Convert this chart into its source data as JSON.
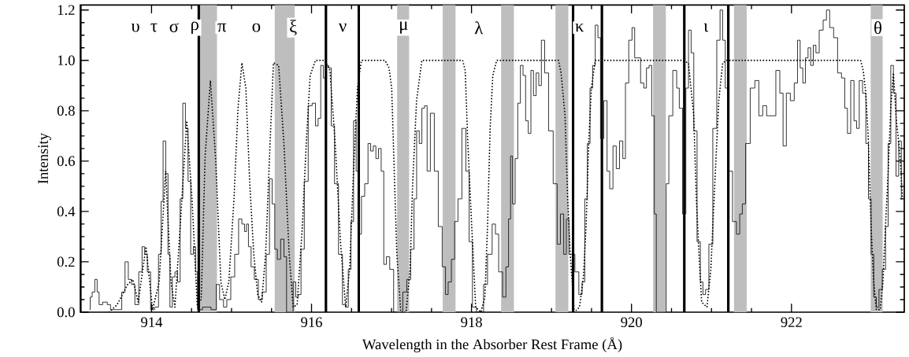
{
  "chart_data": {
    "type": "step",
    "xlabel": "Wavelength in the Absorber Rest Frame (Å)",
    "ylabel": "Intensity",
    "xlim": [
      913.11,
      923.41
    ],
    "ylim": [
      0,
      1.22
    ],
    "xticks": [
      914,
      916,
      918,
      920,
      922
    ],
    "yticks": [
      {
        "value": 0,
        "label": "0.0"
      },
      {
        "value": 0.2,
        "label": "0.2"
      },
      {
        "value": 0.4,
        "label": "0.4"
      },
      {
        "value": 0.6,
        "label": "0.6"
      },
      {
        "value": 0.8,
        "label": "0.8"
      },
      {
        "value": 1.0,
        "label": "1.0"
      },
      {
        "value": 1.2,
        "label": "1.2"
      }
    ],
    "series": [
      {
        "color": "#000000",
        "line_style": "solid",
        "x": [
          913.225,
          913.241,
          913.274,
          913.307,
          913.333,
          913.356,
          913.422,
          913.471,
          913.504,
          913.603,
          913.652,
          913.685,
          913.734,
          913.767,
          913.816,
          913.865,
          913.898,
          913.931,
          913.964,
          914.013,
          914.062,
          914.112,
          914.128,
          914.161,
          914.194,
          914.217,
          914.243,
          914.276,
          914.309,
          914.341,
          914.374,
          914.407,
          914.44,
          914.473,
          914.506,
          914.539,
          914.562,
          914.588,
          914.686,
          914.801,
          914.818,
          914.884,
          914.916,
          914.966,
          915.015,
          915.064,
          915.113,
          915.146,
          915.179,
          915.195,
          915.228,
          915.261,
          915.31,
          915.36,
          915.409,
          915.458,
          915.491,
          915.524,
          915.557,
          915.589,
          915.639,
          915.672,
          915.704,
          915.754,
          915.786,
          915.82,
          915.852,
          915.885,
          915.934,
          915.983,
          916.033,
          916.066,
          916.099,
          916.131,
          916.164,
          916.197,
          916.23,
          916.263,
          916.312,
          916.362,
          916.411,
          916.443,
          916.476,
          916.509,
          916.542,
          916.574,
          916.608,
          916.64,
          916.69,
          916.722,
          916.756,
          916.788,
          916.821,
          916.854,
          916.887,
          916.919,
          916.953,
          917.002,
          917.051,
          917.116,
          917.166,
          917.215,
          917.264,
          917.298,
          917.33,
          917.363,
          917.396,
          917.429,
          917.461,
          917.51,
          917.56,
          917.609,
          917.658,
          917.692,
          917.724,
          917.773,
          917.806,
          917.855,
          917.904,
          917.954,
          917.987,
          918.036,
          918.086,
          918.135,
          918.167,
          918.233,
          918.283,
          918.315,
          918.364,
          918.414,
          918.446,
          918.48,
          918.496,
          918.529,
          918.562,
          918.594,
          918.628,
          918.66,
          918.693,
          918.726,
          918.759,
          918.791,
          918.825,
          918.857,
          918.89,
          918.939,
          918.988,
          919.054,
          919.087,
          919.136,
          919.169,
          919.202,
          919.234,
          919.268,
          919.317,
          919.366,
          919.399,
          919.432,
          919.465,
          919.498,
          919.53,
          919.564,
          919.596,
          919.629,
          919.678,
          919.711,
          919.744,
          919.793,
          919.826,
          919.875,
          919.908,
          919.941,
          919.99,
          920.023,
          920.056,
          920.089,
          920.138,
          920.17,
          920.204,
          920.236,
          920.269,
          920.302,
          920.318,
          920.417,
          920.45,
          920.483,
          920.549,
          920.581,
          920.614,
          920.663,
          920.696,
          920.729,
          920.762,
          920.795,
          920.844,
          920.877,
          920.909,
          920.943,
          920.992,
          921.041,
          921.091,
          921.123,
          921.156,
          921.189,
          921.238,
          921.287,
          921.337,
          921.369,
          921.402,
          921.451,
          921.517,
          921.567,
          921.616,
          921.665,
          921.714,
          921.78,
          921.829,
          921.879,
          921.911,
          921.961,
          922.01,
          922.059,
          922.092,
          922.125,
          922.158,
          922.19,
          922.224,
          922.256,
          922.289,
          922.322,
          922.371,
          922.421,
          922.453,
          922.502,
          922.552,
          922.601,
          922.65,
          922.683,
          922.716,
          922.765,
          922.798,
          922.83,
          922.864,
          922.913,
          922.946,
          922.978,
          923.012,
          923.044,
          923.077,
          923.11,
          923.16,
          923.192,
          923.225,
          923.258,
          923.291,
          923.323,
          923.357,
          923.389
        ],
        "values": [
          0.01,
          0.06,
          0.08,
          0.13,
          0.08,
          0.03,
          0.04,
          0.03,
          0.01,
          0.01,
          0.08,
          0.2,
          0.13,
          0.11,
          0.03,
          0.16,
          0.26,
          0.23,
          0.16,
          0.01,
          0.02,
          0.23,
          0.44,
          0.68,
          0.55,
          0.23,
          0.02,
          0.14,
          0.16,
          0.12,
          0.45,
          0.83,
          0.73,
          0.52,
          0.23,
          0.26,
          0.16,
          0.01,
          0.02,
          0.01,
          0.11,
          0.05,
          0.02,
          0.05,
          0.14,
          0.23,
          0.37,
          0.35,
          0.32,
          0.35,
          0.26,
          0.18,
          0.13,
          0.05,
          0.08,
          0.23,
          0.53,
          0.43,
          0.25,
          0.21,
          0.29,
          0.22,
          0.0,
          0.0,
          0.12,
          0.06,
          0.07,
          0.25,
          0.52,
          0.82,
          0.83,
          0.74,
          0.77,
          0.98,
          0.93,
          0.98,
          0.97,
          0.74,
          0.51,
          0.23,
          0.03,
          0.02,
          0.17,
          0.36,
          0.76,
          0.56,
          0.31,
          0.46,
          0.51,
          0.67,
          0.64,
          0.66,
          0.61,
          0.65,
          0.56,
          0.19,
          0.22,
          0.17,
          0.0,
          0.0,
          0.08,
          0.13,
          0.25,
          0.45,
          0.72,
          0.67,
          0.81,
          0.82,
          0.56,
          0.79,
          0.56,
          0.34,
          0.18,
          0.07,
          0.12,
          0.21,
          0.36,
          0.45,
          0.73,
          0.56,
          0.28,
          0.02,
          0.0,
          0.0,
          0.11,
          0.23,
          0.35,
          0.31,
          0.16,
          0.06,
          0.18,
          0.37,
          0.62,
          0.43,
          0.61,
          0.83,
          0.98,
          0.94,
          0.76,
          0.71,
          0.96,
          0.86,
          0.95,
          0.9,
          1.08,
          0.95,
          0.72,
          0.51,
          0.27,
          0.39,
          0.23,
          0.37,
          0.23,
          0.23,
          0.16,
          0.07,
          0.12,
          0.45,
          0.67,
          0.89,
          0.98,
          1.14,
          1.09,
          0.69,
          0.84,
          0.56,
          0.49,
          0.66,
          0.57,
          0.68,
          0.61,
          0.91,
          1.08,
          1.13,
          1.01,
          1.01,
          0.91,
          0.89,
          0.97,
          0.98,
          0.78,
          0.39,
          0.0,
          0.0,
          0.51,
          0.78,
          0.96,
          0.89,
          0.81,
          0.39,
          0.89,
          1.12,
          1.03,
          0.72,
          0.28,
          0.12,
          0.07,
          0.09,
          0.27,
          0.73,
          1.08,
          1.2,
          1.08,
          0.89,
          0.56,
          0.36,
          0.31,
          0.39,
          0.43,
          0.67,
          0.89,
          0.92,
          0.78,
          0.82,
          0.78,
          0.78,
          0.96,
          0.87,
          0.66,
          0.87,
          0.84,
          0.91,
          1.08,
          0.97,
          0.91,
          1.01,
          1.05,
          0.98,
          1.06,
          1.03,
          1.12,
          1.16,
          1.2,
          1.13,
          1.09,
          0.95,
          0.93,
          0.81,
          0.71,
          0.92,
          0.76,
          0.73,
          0.92,
          0.87,
          0.67,
          0.45,
          0.23,
          0.06,
          0.02,
          0.09,
          0.17,
          0.34,
          0.67,
          0.98,
          0.87,
          0.54,
          0.68,
          0.45
        ]
      },
      {
        "type": "line",
        "color": "#000000",
        "line_style": "dotted",
        "x": [
          913.471,
          913.57,
          913.701,
          913.767,
          913.833,
          913.931,
          914.013,
          914.095,
          914.177,
          914.243,
          914.292,
          914.358,
          914.44,
          914.506,
          914.571,
          914.621,
          914.67,
          914.736,
          914.801,
          914.867,
          914.916,
          914.966,
          915.031,
          915.081,
          915.13,
          915.179,
          915.228,
          915.278,
          915.327,
          915.376,
          915.426,
          915.475,
          915.524,
          915.589,
          915.655,
          915.721,
          915.77,
          915.82,
          915.885,
          915.934,
          915.983,
          916.049,
          916.164,
          916.23,
          916.296,
          916.362,
          916.427,
          916.476,
          916.525,
          916.574,
          916.624,
          916.919,
          916.969,
          917.002,
          917.034,
          917.067,
          917.116,
          917.182,
          917.232,
          917.264,
          917.313,
          917.379,
          917.889,
          917.921,
          917.954,
          918.003,
          918.052,
          918.118,
          918.167,
          918.2,
          918.233,
          918.266,
          918.315,
          919.087,
          919.12,
          919.169,
          919.202,
          919.234,
          919.284,
          919.35,
          919.399,
          919.432,
          919.465,
          919.498,
          919.547,
          920.631,
          920.712,
          920.778,
          920.811,
          920.844,
          920.877,
          920.943,
          920.992,
          921.041,
          921.091,
          921.14,
          921.189,
          922.864,
          922.897,
          922.929,
          922.963,
          922.995,
          923.028,
          923.061,
          923.11,
          923.143,
          923.175,
          923.209,
          923.241,
          923.274,
          923.307,
          923.357,
          923.389
        ],
        "values": [
          0.0,
          0.03,
          0.11,
          0.13,
          0.04,
          0.26,
          0.01,
          0.12,
          0.56,
          0.12,
          0.02,
          0.34,
          0.76,
          0.45,
          0.03,
          0.05,
          0.62,
          0.92,
          0.61,
          0.12,
          0.05,
          0.12,
          0.45,
          0.81,
          0.99,
          0.89,
          0.51,
          0.23,
          0.07,
          0.04,
          0.23,
          0.62,
          0.99,
          0.98,
          0.67,
          0.23,
          0.02,
          0.03,
          0.34,
          0.67,
          0.94,
          1.0,
          1.0,
          0.96,
          0.67,
          0.28,
          0.02,
          0.17,
          0.56,
          0.89,
          1.0,
          1.0,
          0.97,
          0.89,
          0.56,
          0.23,
          0.0,
          0.0,
          0.17,
          0.51,
          0.84,
          1.0,
          1.0,
          0.96,
          0.67,
          0.34,
          0.02,
          0.0,
          0.06,
          0.34,
          0.73,
          0.94,
          1.0,
          1.0,
          0.95,
          0.78,
          0.45,
          0.23,
          0.0,
          0.02,
          0.14,
          0.34,
          0.67,
          0.89,
          1.0,
          1.0,
          0.99,
          0.78,
          0.45,
          0.23,
          0.04,
          0.02,
          0.17,
          0.51,
          0.84,
          0.99,
          1.0,
          1.0,
          0.96,
          0.87,
          0.67,
          0.34,
          0.12,
          0.01,
          0.01,
          0.12,
          0.34,
          0.56,
          0.81,
          0.95,
          0.78,
          0.62,
          0.45
        ]
      }
    ],
    "bands": [
      {
        "axis": "x",
        "from": 914.6,
        "to": 914.82,
        "color": "#bebebe"
      },
      {
        "axis": "x",
        "from": 915.54,
        "to": 915.79,
        "color": "#bebebe"
      },
      {
        "axis": "x",
        "from": 917.07,
        "to": 917.22,
        "color": "#bebebe"
      },
      {
        "axis": "x",
        "from": 917.64,
        "to": 917.8,
        "color": "#bebebe"
      },
      {
        "axis": "x",
        "from": 918.37,
        "to": 918.53,
        "color": "#bebebe"
      },
      {
        "axis": "x",
        "from": 919.05,
        "to": 919.21,
        "color": "#bebebe"
      },
      {
        "axis": "x",
        "from": 920.27,
        "to": 920.43,
        "color": "#bebebe"
      },
      {
        "axis": "x",
        "from": 921.28,
        "to": 921.44,
        "color": "#bebebe"
      },
      {
        "axis": "x",
        "from": 922.99,
        "to": 923.14,
        "color": "#bebebe"
      }
    ],
    "ref_lines": [
      {
        "axis": "x",
        "value": 913.11,
        "color": "#000000",
        "line_style": "solid"
      },
      {
        "axis": "x",
        "value": 914.59,
        "color": "#000000",
        "line_style": "solid"
      },
      {
        "axis": "x",
        "value": 916.18,
        "color": "#000000",
        "line_style": "solid"
      },
      {
        "axis": "x",
        "value": 916.59,
        "color": "#000000",
        "line_style": "solid"
      },
      {
        "axis": "x",
        "value": 919.27,
        "color": "#000000",
        "line_style": "solid"
      },
      {
        "axis": "x",
        "value": 919.63,
        "color": "#000000",
        "line_style": "solid"
      },
      {
        "axis": "x",
        "value": 920.66,
        "color": "#000000",
        "line_style": "solid"
      },
      {
        "axis": "x",
        "value": 921.21,
        "color": "#000000",
        "line_style": "solid"
      }
    ],
    "annotations": [
      {
        "text": "υ",
        "x": 913.8,
        "y": 1.13
      },
      {
        "text": "τ",
        "x": 914.03,
        "y": 1.13
      },
      {
        "text": "σ",
        "x": 914.28,
        "y": 1.13
      },
      {
        "text": "ρ",
        "x": 914.54,
        "y": 1.13
      },
      {
        "text": "π",
        "x": 914.88,
        "y": 1.13
      },
      {
        "text": "ο",
        "x": 915.31,
        "y": 1.13
      },
      {
        "text": "ξ",
        "x": 915.77,
        "y": 1.13
      },
      {
        "text": "ν",
        "x": 916.39,
        "y": 1.13
      },
      {
        "text": "μ",
        "x": 917.15,
        "y": 1.13
      },
      {
        "text": "λ",
        "x": 918.09,
        "y": 1.13
      },
      {
        "text": "κ",
        "x": 919.35,
        "y": 1.13
      },
      {
        "text": "ι",
        "x": 920.93,
        "y": 1.13
      },
      {
        "text": "θ",
        "x": 923.08,
        "y": 1.13
      }
    ]
  }
}
